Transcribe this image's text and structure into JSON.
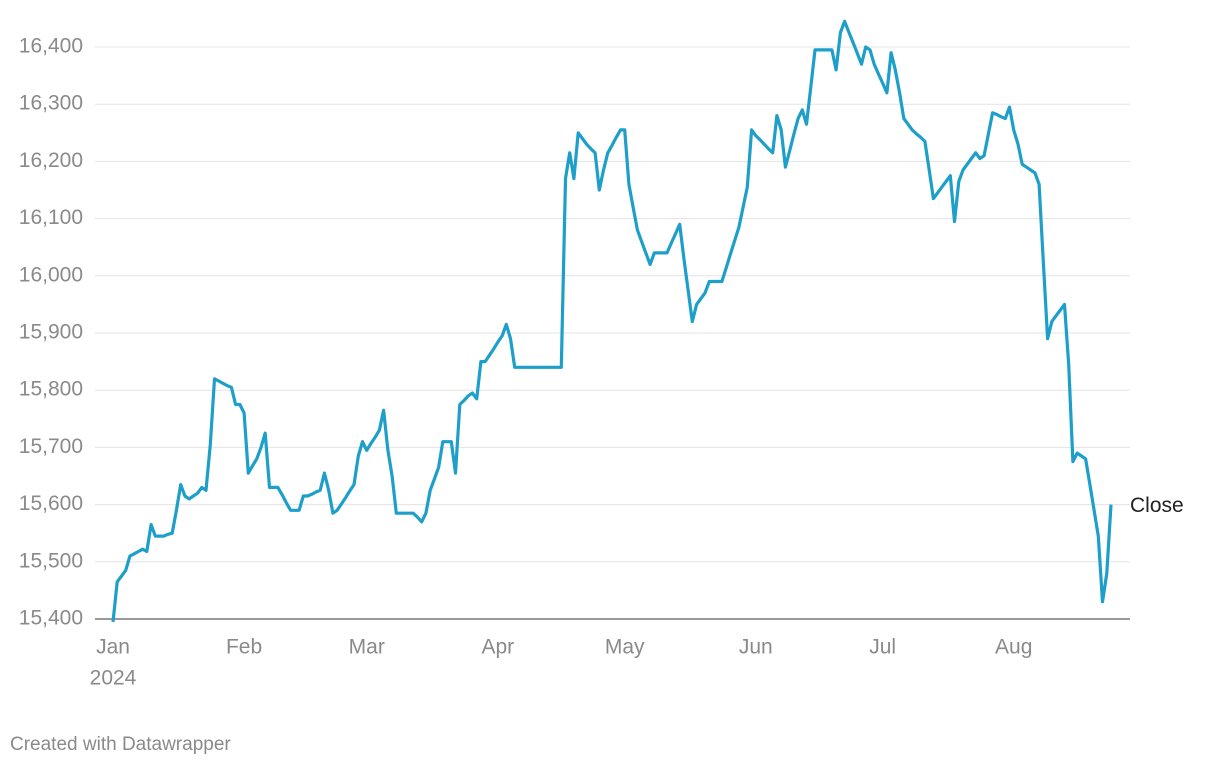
{
  "chart_data": {
    "type": "line",
    "categories": [
      "Jan",
      null,
      null,
      null,
      null,
      null,
      null,
      null,
      null,
      null,
      null,
      null,
      null,
      null,
      null,
      null,
      null,
      null,
      null,
      null,
      null,
      null,
      null,
      null,
      null,
      null,
      null,
      null,
      null,
      null,
      null,
      "Feb",
      null,
      null,
      null,
      null,
      null,
      null,
      null,
      null,
      null,
      null,
      null,
      null,
      null,
      null,
      null,
      null,
      null,
      null,
      null,
      null,
      null,
      null,
      null,
      null,
      null,
      null,
      null,
      null,
      "Mar",
      null,
      null,
      null,
      null,
      null,
      null,
      null,
      null,
      null,
      null,
      null,
      null,
      null,
      null,
      null,
      null,
      null,
      null,
      null,
      null,
      null,
      null,
      null,
      null,
      null,
      null,
      null,
      null,
      null,
      null,
      "Apr",
      null,
      null,
      null,
      null,
      null,
      null,
      null,
      null,
      null,
      null,
      null,
      null,
      null,
      null,
      null,
      null,
      null,
      null,
      null,
      null,
      null,
      null,
      null,
      null,
      null,
      null,
      null,
      null,
      null,
      "May",
      null,
      null,
      null,
      null,
      null,
      null,
      null,
      null,
      null,
      null,
      null,
      null,
      null,
      null,
      null,
      null,
      null,
      null,
      null,
      null,
      null,
      null,
      null,
      null,
      null,
      null,
      null,
      null,
      null,
      null,
      "Jun",
      null,
      null,
      null,
      null,
      null,
      null,
      null,
      null,
      null,
      null,
      null,
      null,
      null,
      null,
      null,
      null,
      null,
      null,
      null,
      null,
      null,
      null,
      null,
      null,
      null,
      null,
      null,
      null,
      null,
      "Jul",
      null,
      null,
      null,
      null,
      null,
      null,
      null,
      null,
      null,
      null,
      null,
      null,
      null,
      null,
      null,
      null,
      null,
      null,
      null,
      null,
      null,
      null,
      null,
      null,
      null,
      null,
      null,
      null,
      null,
      null,
      "Aug",
      null,
      null,
      null,
      null,
      null,
      null,
      null,
      null,
      null,
      null,
      null,
      null,
      null,
      null,
      null,
      null,
      null,
      null,
      null,
      null,
      null,
      null,
      null
    ],
    "year": "2024",
    "series": [
      {
        "name": "Close",
        "color": "#1d9fc9",
        "values": [
          15395,
          15465,
          15475,
          15485,
          15510,
          15514,
          15518,
          15522,
          15518,
          15565,
          15545,
          15545,
          15545,
          15548,
          15550,
          15590,
          15635,
          15615,
          15610,
          15615,
          15620,
          15630,
          15625,
          15705,
          15820,
          15816,
          15812,
          15808,
          15805,
          15775,
          15775,
          15760,
          15655,
          15668,
          15680,
          15700,
          15725,
          15630,
          15630,
          15630,
          15617,
          15603,
          15590,
          15590,
          15590,
          15615,
          15615,
          15618,
          15622,
          15625,
          15655,
          15625,
          15585,
          15590,
          15601,
          15612,
          15624,
          15635,
          15685,
          15710,
          15695,
          15707,
          15718,
          15730,
          15765,
          15695,
          15650,
          15585,
          15585,
          15585,
          15585,
          15585,
          15578,
          15570,
          15585,
          15625,
          15645,
          15665,
          15710,
          15710,
          15710,
          15655,
          15775,
          15782,
          15790,
          15795,
          15785,
          15850,
          15850,
          15861,
          15872,
          15884,
          15895,
          15915,
          15890,
          15840,
          15840,
          15840,
          15840,
          15840,
          15840,
          15840,
          15840,
          15840,
          15840,
          15840,
          15840,
          16170,
          16215,
          16170,
          16250,
          16240,
          16230,
          16222,
          16215,
          16150,
          16185,
          16215,
          16228,
          16242,
          16255,
          16255,
          16160,
          16120,
          16080,
          16060,
          16040,
          16020,
          16040,
          16040,
          16040,
          16040,
          16057,
          16073,
          16090,
          16030,
          15975,
          15920,
          15950,
          15960,
          15970,
          15990,
          15990,
          15990,
          15990,
          16014,
          16038,
          16061,
          16085,
          16120,
          16155,
          16255,
          16245,
          16238,
          16230,
          16222,
          16215,
          16280,
          16255,
          16190,
          16218,
          16247,
          16275,
          16290,
          16265,
          16330,
          16395,
          16395,
          16395,
          16395,
          16395,
          16360,
          16425,
          16445,
          16426,
          16408,
          16389,
          16370,
          16400,
          16395,
          16370,
          16353,
          16337,
          16320,
          16390,
          16360,
          16320,
          16275,
          16265,
          16255,
          16248,
          16242,
          16235,
          16185,
          16135,
          16145,
          16155,
          16165,
          16175,
          16095,
          16165,
          16185,
          16195,
          16205,
          16215,
          16205,
          16210,
          16248,
          16285,
          16282,
          16278,
          16275,
          16295,
          16255,
          16230,
          16195,
          16190,
          16185,
          16180,
          16160,
          16025,
          15890,
          15920,
          15930,
          15940,
          15950,
          15845,
          15675,
          15690,
          15685,
          15680,
          15635,
          15590,
          15545,
          15430,
          15480,
          15600
        ]
      }
    ],
    "ylim": [
      15400,
      16400
    ],
    "yticks": [
      {
        "value": 15400,
        "label": "15,400"
      },
      {
        "value": 15500,
        "label": "15,500"
      },
      {
        "value": 15600,
        "label": "15,600"
      },
      {
        "value": 15700,
        "label": "15,700"
      },
      {
        "value": 15800,
        "label": "15,800"
      },
      {
        "value": 15900,
        "label": "15,900"
      },
      {
        "value": 16000,
        "label": "16,000"
      },
      {
        "value": 16100,
        "label": "16,100"
      },
      {
        "value": 16200,
        "label": "16,200"
      },
      {
        "value": 16300,
        "label": "16,300"
      },
      {
        "value": 16400,
        "label": "16,400"
      }
    ],
    "grid": true,
    "footer": "Created with Datawrapper"
  }
}
